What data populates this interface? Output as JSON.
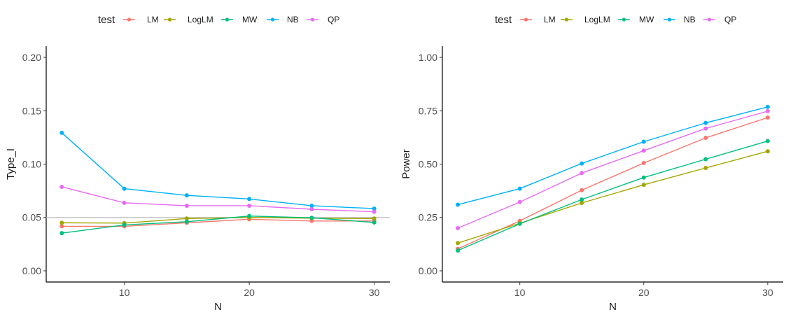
{
  "chart_data": [
    {
      "type": "line",
      "x": [
        5,
        10,
        15,
        20,
        25,
        30
      ],
      "xlabel": "N",
      "ylabel": "Type_I",
      "xlim": [
        3.75,
        31.25
      ],
      "ylim": [
        -0.0105,
        0.2105
      ],
      "xticks": [
        10,
        20,
        30
      ],
      "xtick_labels": [
        "10",
        "20",
        "30"
      ],
      "yticks": [
        0,
        0.05,
        0.1,
        0.15,
        0.2
      ],
      "ytick_labels": [
        "0.00",
        "0.05",
        "0.10",
        "0.15",
        "0.20"
      ],
      "reference_line": 0.05,
      "reference_color": "#bebebe",
      "legend_title": "test",
      "legend_position": "top",
      "grid": false,
      "series": [
        {
          "name": "LM",
          "color": "#F8766D",
          "values": [
            0.0417,
            0.0417,
            0.045,
            0.0483,
            0.0467,
            0.0467
          ]
        },
        {
          "name": "LogLM",
          "color": "#A3A500",
          "values": [
            0.045,
            0.0447,
            0.049,
            0.05,
            0.0493,
            0.049
          ]
        },
        {
          "name": "MW",
          "color": "#00BF7D",
          "values": [
            0.0353,
            0.043,
            0.046,
            0.0513,
            0.0497,
            0.0453
          ]
        },
        {
          "name": "NB",
          "color": "#00B0F6",
          "values": [
            0.1293,
            0.077,
            0.0707,
            0.0673,
            0.061,
            0.0583
          ]
        },
        {
          "name": "QP",
          "color": "#E76BF3",
          "values": [
            0.0787,
            0.0637,
            0.061,
            0.061,
            0.0577,
            0.0553
          ]
        }
      ]
    },
    {
      "type": "line",
      "x": [
        5,
        10,
        15,
        20,
        25,
        30
      ],
      "xlabel": "N",
      "ylabel": "Power",
      "xlim": [
        3.75,
        31.25
      ],
      "ylim": [
        -0.0525,
        1.0525
      ],
      "xticks": [
        10,
        20,
        30
      ],
      "xtick_labels": [
        "10",
        "20",
        "30"
      ],
      "yticks": [
        0,
        0.25,
        0.5,
        0.75,
        1.0
      ],
      "ytick_labels": [
        "0.00",
        "0.25",
        "0.50",
        "0.75",
        "1.00"
      ],
      "legend_title": "test",
      "legend_position": "top",
      "grid": false,
      "series": [
        {
          "name": "LM",
          "color": "#F8766D",
          "values": [
            0.103,
            0.234,
            0.378,
            0.505,
            0.623,
            0.718
          ]
        },
        {
          "name": "LogLM",
          "color": "#A3A500",
          "values": [
            0.13,
            0.223,
            0.318,
            0.403,
            0.482,
            0.56
          ]
        },
        {
          "name": "MW",
          "color": "#00BF7D",
          "values": [
            0.095,
            0.22,
            0.334,
            0.437,
            0.523,
            0.608
          ]
        },
        {
          "name": "NB",
          "color": "#00B0F6",
          "values": [
            0.31,
            0.385,
            0.503,
            0.605,
            0.693,
            0.768
          ]
        },
        {
          "name": "QP",
          "color": "#E76BF3",
          "values": [
            0.2,
            0.322,
            0.458,
            0.563,
            0.667,
            0.748
          ]
        }
      ]
    }
  ]
}
